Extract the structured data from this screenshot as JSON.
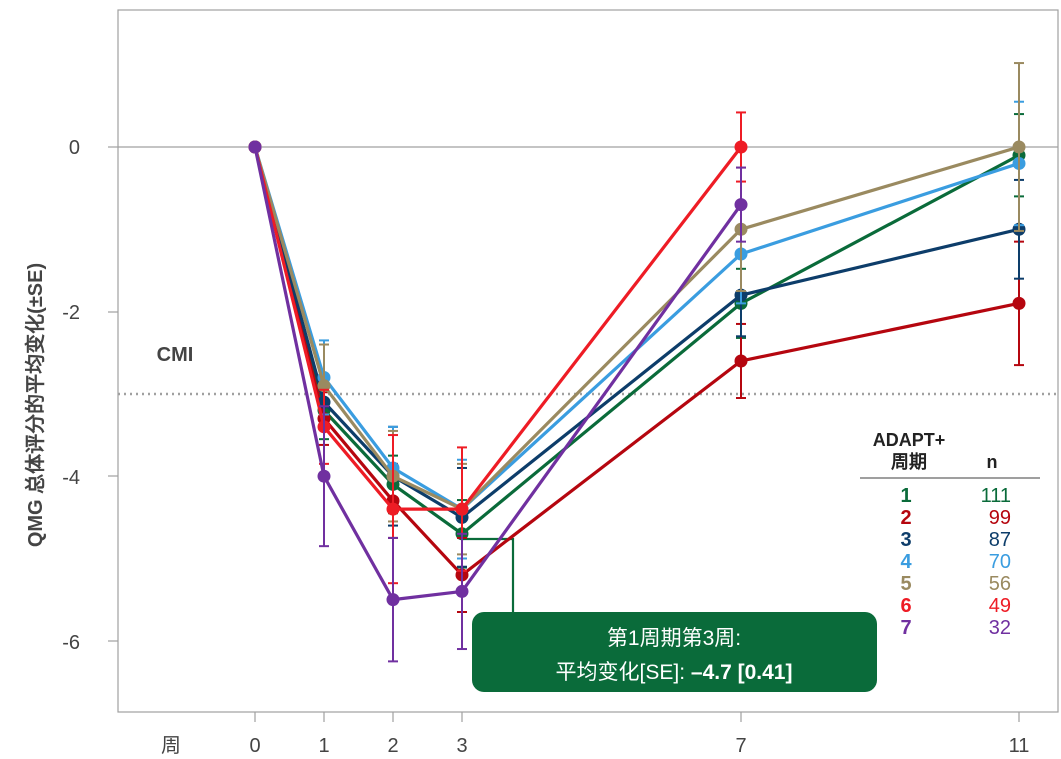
{
  "chart_data": {
    "type": "line",
    "ylabel": "QMG 总体评分的平均变化(±SE)",
    "xlabel": "周",
    "x": [
      0,
      1,
      2,
      3,
      7,
      11
    ],
    "x_tick_labels": [
      "0",
      "1",
      "2",
      "3",
      "7",
      "11"
    ],
    "ylim": [
      -6.8,
      1.65
    ],
    "y_ticks": [
      0,
      -2,
      -4,
      -6
    ],
    "y_tick_labels": [
      "0",
      "-2",
      "-4",
      "-6"
    ],
    "reference_lines": [
      {
        "label": "CMI",
        "y": -3,
        "style": "dotted"
      },
      {
        "y": 0,
        "style": "solid"
      }
    ],
    "legend": {
      "header_line1": "ADAPT+",
      "header_line2": "周期",
      "header_n": "n",
      "placement": "right"
    },
    "series": [
      {
        "name": "1",
        "n": "111",
        "color": "#0a6b3a",
        "values": [
          0,
          -3.2,
          -4.1,
          -4.7,
          -1.9,
          -0.1
        ],
        "se": [
          0,
          0.35,
          0.35,
          0.41,
          0.42,
          0.5
        ]
      },
      {
        "name": "2",
        "n": "99",
        "color": "#b5060f",
        "values": [
          0,
          -3.3,
          -4.3,
          -5.2,
          -2.6,
          -1.9
        ],
        "se": [
          0,
          0.32,
          0.45,
          0.45,
          0.45,
          0.75
        ]
      },
      {
        "name": "3",
        "n": "87",
        "color": "#0d3d6a",
        "values": [
          0,
          -3.1,
          -4.0,
          -4.5,
          -1.8,
          -1.0
        ],
        "se": [
          0,
          0.3,
          0.6,
          0.6,
          0.5,
          0.6
        ]
      },
      {
        "name": "4",
        "n": "70",
        "color": "#3a9de0",
        "values": [
          0,
          -2.8,
          -3.9,
          -4.4,
          -1.3,
          -0.2
        ],
        "se": [
          0,
          0.45,
          0.5,
          0.6,
          0.6,
          0.75
        ]
      },
      {
        "name": "5",
        "n": "56",
        "color": "#9a8a60",
        "values": [
          0,
          -2.9,
          -4.0,
          -4.4,
          -1.0,
          0.0
        ],
        "se": [
          0,
          0.5,
          0.55,
          0.55,
          0.75,
          1.02
        ]
      },
      {
        "name": "6",
        "n": "49",
        "color": "#ee1c25",
        "values": [
          0,
          -3.4,
          -4.4,
          -4.4,
          0.0,
          null
        ],
        "se": [
          0,
          0.45,
          0.9,
          0.75,
          0.42,
          null
        ]
      },
      {
        "name": "7",
        "n": "32",
        "color": "#7030a0",
        "values": [
          0,
          -4.0,
          -5.5,
          -5.4,
          -0.7,
          null
        ],
        "se": [
          0,
          0.85,
          0.75,
          0.7,
          0.45,
          null
        ]
      }
    ],
    "callout": {
      "line1": "第1周期第3周:",
      "line2_prefix": "平均变化[SE]: ",
      "line2_value": "–4.7 [0.41]",
      "color": "#0a6b3a",
      "anchor_series": "1",
      "anchor_x": 3
    }
  }
}
